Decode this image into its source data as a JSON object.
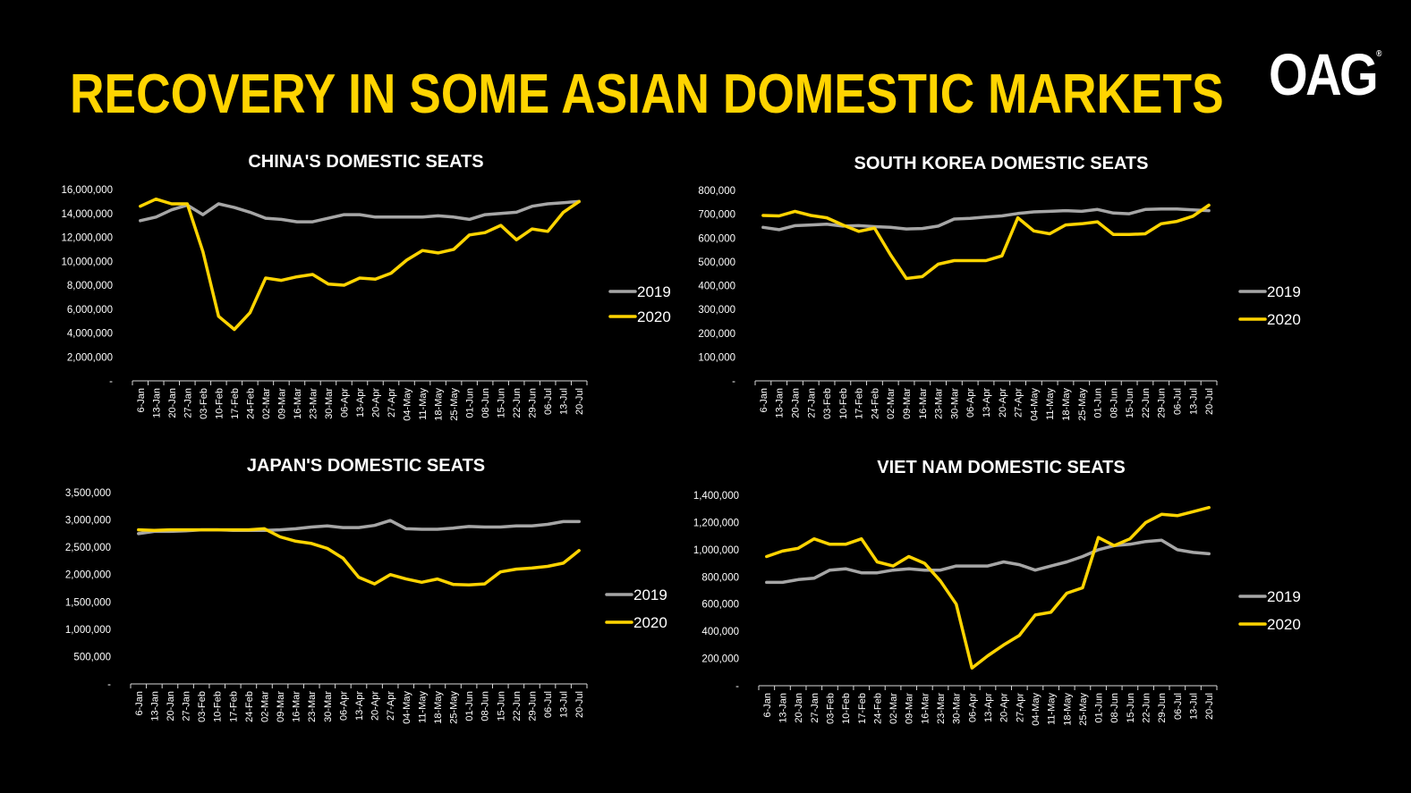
{
  "page": {
    "title": "RECOVERY IN SOME ASIAN DOMESTIC MARKETS",
    "logo": "OAG",
    "logo_mark": "®"
  },
  "colors": {
    "background": "#000000",
    "accent": "#FFD400",
    "series_2019": "#A6A6A6",
    "series_2020": "#FFD400",
    "text": "#FFFFFF"
  },
  "chart_data": [
    {
      "id": "china",
      "type": "line",
      "title": "CHINA'S DOMESTIC SEATS",
      "categories": [
        "6-Jan",
        "13-Jan",
        "20-Jan",
        "27-Jan",
        "03-Feb",
        "10-Feb",
        "17-Feb",
        "24-Feb",
        "02-Mar",
        "09-Mar",
        "16-Mar",
        "23-Mar",
        "30-Mar",
        "06-Apr",
        "13-Apr",
        "20-Apr",
        "27-Apr",
        "04-May",
        "11-May",
        "18-May",
        "25-May",
        "01-Jun",
        "08-Jun",
        "15-Jun",
        "22-Jun",
        "29-Jun",
        "06-Jul",
        "13-Jul",
        "20-Jul"
      ],
      "ylim": [
        0,
        16000000
      ],
      "yticks": [
        0,
        2000000,
        4000000,
        6000000,
        8000000,
        10000000,
        12000000,
        14000000,
        16000000
      ],
      "ytick_labels": [
        "-",
        "2,000,000",
        "4,000,000",
        "6,000,000",
        "8,000,000",
        "10,000,000",
        "12,000,000",
        "14,000,000",
        "16,000,000"
      ],
      "legend": "right",
      "series": [
        {
          "name": "2019",
          "values": [
            13400000,
            13700000,
            14300000,
            14700000,
            13900000,
            14800000,
            14500000,
            14100000,
            13600000,
            13500000,
            13300000,
            13300000,
            13600000,
            13900000,
            13900000,
            13700000,
            13700000,
            13700000,
            13700000,
            13800000,
            13700000,
            13500000,
            13900000,
            14000000,
            14100000,
            14600000,
            14800000,
            14900000,
            15000000
          ]
        },
        {
          "name": "2020",
          "values": [
            14600000,
            15200000,
            14800000,
            14800000,
            10800000,
            5400000,
            4300000,
            5700000,
            8600000,
            8400000,
            8700000,
            8900000,
            8100000,
            8000000,
            8600000,
            8500000,
            9000000,
            10100000,
            10900000,
            10700000,
            11000000,
            12200000,
            12400000,
            13000000,
            11800000,
            12700000,
            12500000,
            14100000,
            15000000
          ]
        }
      ]
    },
    {
      "id": "south-korea",
      "type": "line",
      "title": "SOUTH KOREA DOMESTIC SEATS",
      "categories": [
        "6-Jan",
        "13-Jan",
        "20-Jan",
        "27-Jan",
        "03-Feb",
        "10-Feb",
        "17-Feb",
        "24-Feb",
        "02-Mar",
        "09-Mar",
        "16-Mar",
        "23-Mar",
        "30-Mar",
        "06-Apr",
        "13-Apr",
        "20-Apr",
        "27-Apr",
        "04-May",
        "11-May",
        "18-May",
        "25-May",
        "01-Jun",
        "08-Jun",
        "15-Jun",
        "22-Jun",
        "29-Jun",
        "06-Jul",
        "13-Jul",
        "20-Jul"
      ],
      "ylim": [
        0,
        800000
      ],
      "yticks": [
        0,
        100000,
        200000,
        300000,
        400000,
        500000,
        600000,
        700000,
        800000
      ],
      "ytick_labels": [
        "-",
        "100,000",
        "200,000",
        "300,000",
        "400,000",
        "500,000",
        "600,000",
        "700,000",
        "800,000"
      ],
      "legend": "right",
      "series": [
        {
          "name": "2019",
          "values": [
            645000,
            635000,
            652000,
            655000,
            658000,
            650000,
            652000,
            648000,
            645000,
            638000,
            640000,
            650000,
            680000,
            683000,
            688000,
            693000,
            703000,
            710000,
            712000,
            715000,
            712000,
            720000,
            705000,
            702000,
            720000,
            722000,
            722000,
            718000,
            715000
          ]
        },
        {
          "name": "2020",
          "values": [
            695000,
            693000,
            712000,
            695000,
            685000,
            655000,
            628000,
            642000,
            530000,
            430000,
            438000,
            490000,
            505000,
            505000,
            505000,
            525000,
            685000,
            630000,
            618000,
            655000,
            660000,
            668000,
            615000,
            615000,
            618000,
            660000,
            670000,
            692000,
            738000
          ]
        }
      ]
    },
    {
      "id": "japan",
      "type": "line",
      "title": "JAPAN'S DOMESTIC SEATS",
      "categories": [
        "6-Jan",
        "13-Jan",
        "20-Jan",
        "27-Jan",
        "03-Feb",
        "10-Feb",
        "17-Feb",
        "24-Feb",
        "02-Mar",
        "09-Mar",
        "16-Mar",
        "23-Mar",
        "30-Mar",
        "06-Apr",
        "13-Apr",
        "20-Apr",
        "27-Apr",
        "04-May",
        "11-May",
        "18-May",
        "25-May",
        "01-Jun",
        "08-Jun",
        "15-Jun",
        "22-Jun",
        "29-Jun",
        "06-Jul",
        "13-Jul",
        "20-Jul"
      ],
      "ylim": [
        0,
        3500000
      ],
      "yticks": [
        0,
        500000,
        1000000,
        1500000,
        2000000,
        2500000,
        3000000,
        3500000
      ],
      "ytick_labels": [
        "-",
        "500,000",
        "1,000,000",
        "1,500,000",
        "2,000,000",
        "2,500,000",
        "3,000,000",
        "3,500,000"
      ],
      "legend": "right",
      "series": [
        {
          "name": "2019",
          "values": [
            2750000,
            2790000,
            2790000,
            2800000,
            2820000,
            2820000,
            2810000,
            2810000,
            2810000,
            2820000,
            2840000,
            2870000,
            2890000,
            2860000,
            2860000,
            2900000,
            2990000,
            2840000,
            2830000,
            2830000,
            2850000,
            2880000,
            2870000,
            2870000,
            2890000,
            2890000,
            2920000,
            2970000,
            2970000
          ]
        },
        {
          "name": "2020",
          "values": [
            2820000,
            2810000,
            2820000,
            2820000,
            2820000,
            2820000,
            2820000,
            2820000,
            2840000,
            2690000,
            2610000,
            2570000,
            2480000,
            2300000,
            1950000,
            1830000,
            2000000,
            1920000,
            1860000,
            1920000,
            1820000,
            1810000,
            1830000,
            2050000,
            2100000,
            2120000,
            2150000,
            2210000,
            2440000
          ]
        }
      ]
    },
    {
      "id": "viet-nam",
      "type": "line",
      "title": "VIET NAM DOMESTIC SEATS",
      "categories": [
        "6-Jan",
        "13-Jan",
        "20-Jan",
        "27-Jan",
        "03-Feb",
        "10-Feb",
        "17-Feb",
        "24-Feb",
        "02-Mar",
        "09-Mar",
        "16-Mar",
        "23-Mar",
        "30-Mar",
        "06-Apr",
        "13-Apr",
        "20-Apr",
        "27-Apr",
        "04-May",
        "11-May",
        "18-May",
        "25-May",
        "01-Jun",
        "08-Jun",
        "15-Jun",
        "22-Jun",
        "29-Jun",
        "06-Jul",
        "13-Jul",
        "20-Jul"
      ],
      "ylim": [
        0,
        1400000
      ],
      "yticks": [
        0,
        200000,
        400000,
        600000,
        800000,
        1000000,
        1200000,
        1400000
      ],
      "ytick_labels": [
        "-",
        "200,000",
        "400,000",
        "600,000",
        "800,000",
        "1,000,000",
        "1,200,000",
        "1,400,000"
      ],
      "legend": "right",
      "series": [
        {
          "name": "2019",
          "values": [
            760000,
            760000,
            780000,
            790000,
            850000,
            860000,
            830000,
            830000,
            850000,
            860000,
            850000,
            850000,
            880000,
            880000,
            880000,
            910000,
            890000,
            850000,
            880000,
            910000,
            950000,
            1000000,
            1030000,
            1040000,
            1060000,
            1070000,
            1000000,
            980000,
            970000
          ]
        },
        {
          "name": "2020",
          "values": [
            950000,
            990000,
            1010000,
            1080000,
            1040000,
            1040000,
            1080000,
            910000,
            880000,
            950000,
            900000,
            770000,
            600000,
            130000,
            220000,
            300000,
            370000,
            520000,
            540000,
            680000,
            720000,
            1090000,
            1030000,
            1080000,
            1200000,
            1260000,
            1250000,
            1280000,
            1310000
          ]
        }
      ]
    }
  ]
}
